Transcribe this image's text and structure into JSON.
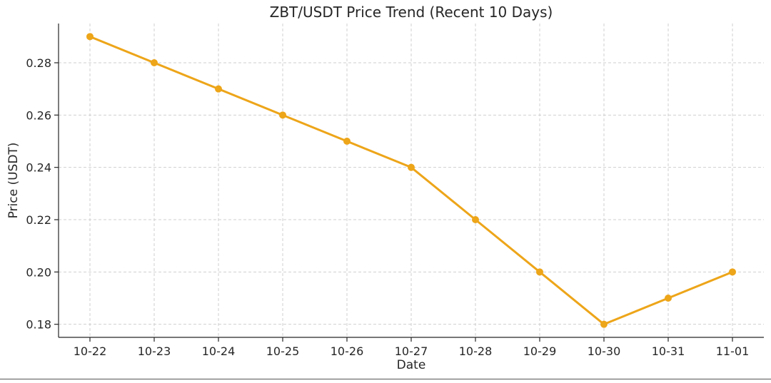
{
  "chart_data": {
    "type": "line",
    "title": "ZBT/USDT Price Trend (Recent 10 Days)",
    "xlabel": "Date",
    "ylabel": "Price (USDT)",
    "categories": [
      "10-22",
      "10-23",
      "10-24",
      "10-25",
      "10-26",
      "10-27",
      "10-28",
      "10-29",
      "10-30",
      "10-31",
      "11-01"
    ],
    "series": [
      {
        "values": [
          0.29,
          0.28,
          0.27,
          0.26,
          0.25,
          0.24,
          0.22,
          0.2,
          0.18,
          0.19,
          0.2
        ],
        "color": "#EDA519",
        "marker": "circle"
      }
    ],
    "ylim": [
      0.175,
      0.295
    ],
    "yticks": [
      "0.18",
      "0.20",
      "0.22",
      "0.24",
      "0.26",
      "0.28"
    ],
    "grid": true,
    "legend": "none"
  }
}
